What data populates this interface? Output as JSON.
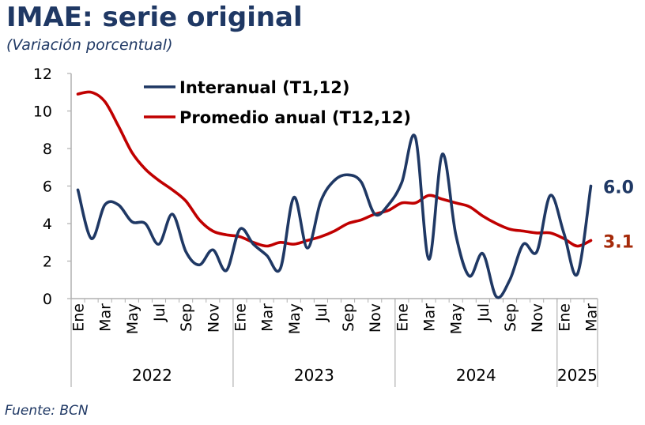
{
  "title": "IMAE: serie original",
  "subtitle": "(Variación porcentual)",
  "source": "Fuente: BCN",
  "colors": {
    "interanual": "#1f3864",
    "promedio": "#c00000",
    "end_label_promedio": "#a52a0a",
    "axis": "#b0b0b0",
    "text": "#000000"
  },
  "chart_data": {
    "type": "line",
    "title": "IMAE: serie original",
    "subtitle": "(Variación porcentual)",
    "xlabel": "",
    "ylabel": "",
    "ylim": [
      0,
      12
    ],
    "yticks": [
      "0",
      "2",
      "4",
      "6",
      "8",
      "10",
      "12"
    ],
    "grid": false,
    "legend_position": "top",
    "x_tick_labels": [
      "Ene",
      "Mar",
      "May",
      "Jul",
      "Sep",
      "Nov",
      "Ene",
      "Mar",
      "May",
      "Jul",
      "Sep",
      "Nov",
      "Ene",
      "Mar",
      "May",
      "Jul",
      "Sep",
      "Nov",
      "Ene",
      "Mar"
    ],
    "year_labels": [
      "2022",
      "2023",
      "2024",
      "2025"
    ],
    "series": [
      {
        "name": "Interanual (T1,12)",
        "end_label": "6.0",
        "values": [
          5.8,
          3.2,
          5.0,
          5.0,
          4.1,
          4.0,
          2.9,
          4.5,
          2.5,
          1.8,
          2.6,
          1.5,
          3.7,
          2.9,
          2.3,
          1.6,
          5.4,
          2.7,
          5.2,
          6.3,
          6.6,
          6.2,
          4.5,
          5.0,
          6.2,
          8.6,
          2.1,
          7.7,
          3.4,
          1.2,
          2.4,
          0.1,
          1.0,
          2.9,
          2.5,
          5.5,
          3.5,
          1.3,
          6.0
        ]
      },
      {
        "name": "Promedio anual (T12,12)",
        "end_label": "3.1",
        "values": [
          10.9,
          11.0,
          10.5,
          9.2,
          7.8,
          6.9,
          6.3,
          5.8,
          5.2,
          4.2,
          3.6,
          3.4,
          3.3,
          3.0,
          2.8,
          3.0,
          2.9,
          3.1,
          3.3,
          3.6,
          4.0,
          4.2,
          4.5,
          4.7,
          5.1,
          5.1,
          5.5,
          5.3,
          5.1,
          4.9,
          4.4,
          4.0,
          3.7,
          3.6,
          3.5,
          3.5,
          3.2,
          2.8,
          3.1
        ]
      }
    ]
  }
}
